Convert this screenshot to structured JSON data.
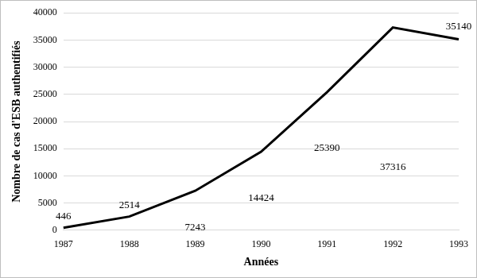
{
  "chart_data": {
    "type": "line",
    "x_label": "Années",
    "y_label": "Nombre de cas d'ESB authentifiés",
    "categories": [
      "1987",
      "1988",
      "1989",
      "1990",
      "1991",
      "1992",
      "1993"
    ],
    "values": [
      446,
      2514,
      7243,
      14424,
      25390,
      37316,
      35140
    ],
    "color": "#000000",
    "ylim": [
      0,
      40000
    ],
    "yticks": [
      0,
      5000,
      10000,
      15000,
      20000,
      25000,
      30000,
      35000,
      40000
    ],
    "grid": true,
    "data_labels": true
  }
}
